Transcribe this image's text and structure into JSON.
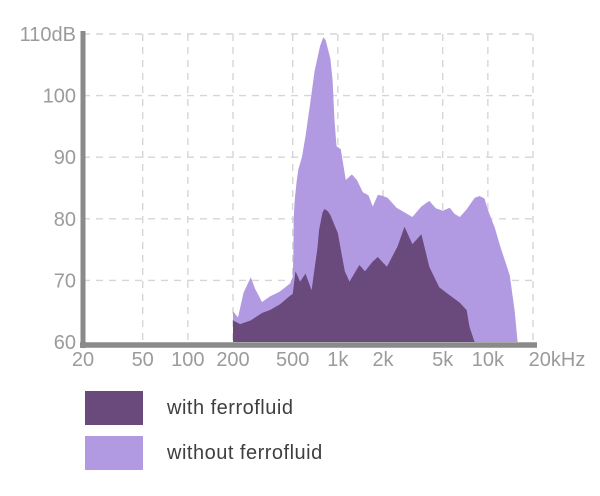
{
  "chart_data": {
    "type": "area",
    "title": "",
    "x_axis": {
      "scale": "log",
      "unit": "Hz",
      "min": 20,
      "max": 20000,
      "ticks": [
        {
          "v": 20,
          "label": "20"
        },
        {
          "v": 50,
          "label": "50"
        },
        {
          "v": 100,
          "label": "100"
        },
        {
          "v": 200,
          "label": "200"
        },
        {
          "v": 500,
          "label": "500"
        },
        {
          "v": 1000,
          "label": "1k"
        },
        {
          "v": 2000,
          "label": "2k"
        },
        {
          "v": 5000,
          "label": "5k"
        },
        {
          "v": 10000,
          "label": "10k"
        },
        {
          "v": 20000,
          "label": "20kHz"
        }
      ]
    },
    "y_axis": {
      "unit": "dB",
      "min": 60,
      "max": 110,
      "ticks": [
        {
          "v": 110,
          "label": "110dB"
        },
        {
          "v": 100,
          "label": "100"
        },
        {
          "v": 90,
          "label": "90"
        },
        {
          "v": 80,
          "label": "80"
        },
        {
          "v": 70,
          "label": "70"
        },
        {
          "v": 60,
          "label": "60"
        }
      ]
    },
    "grid": true,
    "baseline_db": 60,
    "series": [
      {
        "name": "without ferrofluid",
        "color": "#b29ae2",
        "points": [
          [
            200,
            65
          ],
          [
            216,
            64
          ],
          [
            235,
            68
          ],
          [
            263,
            70.5
          ],
          [
            280,
            68.7
          ],
          [
            312,
            66.5
          ],
          [
            353,
            67.4
          ],
          [
            411,
            68.2
          ],
          [
            480,
            69.5
          ],
          [
            500,
            70.5
          ],
          [
            505,
            74
          ],
          [
            508,
            80
          ],
          [
            516,
            83
          ],
          [
            531,
            86
          ],
          [
            545,
            88
          ],
          [
            576,
            90
          ],
          [
            610,
            93.5
          ],
          [
            656,
            99
          ],
          [
            700,
            104
          ],
          [
            760,
            108
          ],
          [
            800,
            109.5
          ],
          [
            830,
            109
          ],
          [
            870,
            107
          ],
          [
            892,
            106
          ],
          [
            922,
            102.5
          ],
          [
            950,
            96
          ],
          [
            980,
            91.8
          ],
          [
            1047,
            91.3
          ],
          [
            1130,
            86.3
          ],
          [
            1240,
            87.2
          ],
          [
            1340,
            86.3
          ],
          [
            1470,
            84.3
          ],
          [
            1600,
            83.8
          ],
          [
            1710,
            82
          ],
          [
            1850,
            83.9
          ],
          [
            2000,
            83.7
          ],
          [
            2150,
            83.4
          ],
          [
            2460,
            81.8
          ],
          [
            2800,
            81
          ],
          [
            3140,
            80.3
          ],
          [
            3600,
            82
          ],
          [
            4070,
            82.9
          ],
          [
            4500,
            81.7
          ],
          [
            5000,
            81.3
          ],
          [
            5570,
            81.8
          ],
          [
            6000,
            80.8
          ],
          [
            6500,
            80.3
          ],
          [
            7200,
            81.5
          ],
          [
            8160,
            83.4
          ],
          [
            8800,
            83.7
          ],
          [
            9500,
            83.3
          ],
          [
            10000,
            81.5
          ],
          [
            11150,
            78.5
          ],
          [
            12030,
            75.7
          ],
          [
            12980,
            73.3
          ],
          [
            14000,
            70.8
          ],
          [
            15100,
            65
          ],
          [
            15800,
            60
          ]
        ]
      },
      {
        "name": "with ferrofluid",
        "color": "#6a4a7d",
        "points": [
          [
            200,
            63.5
          ],
          [
            223,
            62.9
          ],
          [
            263,
            63.5
          ],
          [
            312,
            64.7
          ],
          [
            353,
            65.2
          ],
          [
            411,
            66.1
          ],
          [
            480,
            67.5
          ],
          [
            500,
            67.8
          ],
          [
            522,
            71.5
          ],
          [
            560,
            69.8
          ],
          [
            609,
            71.1
          ],
          [
            668,
            68.4
          ],
          [
            700,
            72
          ],
          [
            731,
            75.2
          ],
          [
            750,
            78.2
          ],
          [
            790,
            81
          ],
          [
            813,
            81.6
          ],
          [
            860,
            81.2
          ],
          [
            892,
            80.6
          ],
          [
            960,
            78.7
          ],
          [
            1000,
            77.7
          ],
          [
            1113,
            71.5
          ],
          [
            1196,
            69.8
          ],
          [
            1393,
            72.5
          ],
          [
            1518,
            71.5
          ],
          [
            1700,
            73
          ],
          [
            1847,
            73.8
          ],
          [
            2122,
            72.2
          ],
          [
            2500,
            75.5
          ],
          [
            2781,
            78.7
          ],
          [
            3141,
            75.9
          ],
          [
            3604,
            77.5
          ],
          [
            4068,
            72.2
          ],
          [
            4741,
            68.9
          ],
          [
            5568,
            67.6
          ],
          [
            6489,
            66.4
          ],
          [
            7222,
            65.2
          ],
          [
            7560,
            62.4
          ],
          [
            8156,
            60
          ]
        ]
      }
    ]
  },
  "legend": {
    "items": [
      {
        "label": "with ferrofluid",
        "color": "#6a4a7d"
      },
      {
        "label": "without ferrofluid",
        "color": "#b29ae2"
      }
    ]
  },
  "style_colors": {
    "axis": "#8a8a8a",
    "grid": "#d6d6d6",
    "tick_text": "#9b9b9b",
    "legend_text": "#3f3f3f",
    "background": "#ffffff"
  }
}
